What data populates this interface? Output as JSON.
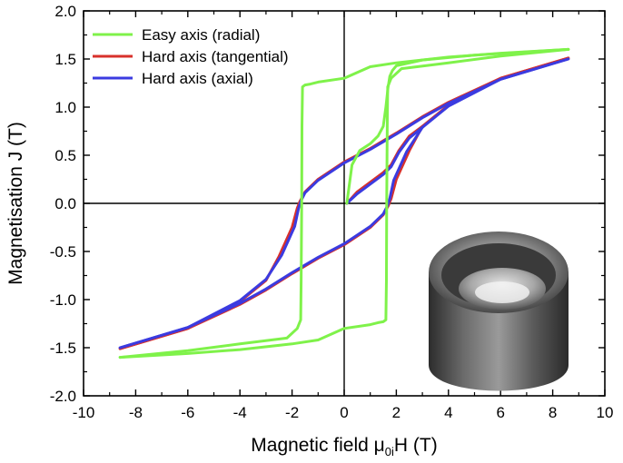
{
  "chart_data": {
    "type": "line",
    "xlabel_prefix": "Magnetic field ",
    "xlabel_mu": "μ",
    "xlabel_sub": "0i",
    "xlabel_suffix": "H (T)",
    "ylabel": "Magnetisation J (T)",
    "xlim": [
      -10,
      10
    ],
    "ylim": [
      -2.0,
      2.0
    ],
    "xticks": [
      -10,
      -8,
      -6,
      -4,
      -2,
      0,
      2,
      4,
      6,
      8,
      10
    ],
    "xtick_labels": [
      "-10",
      "-8",
      "-6",
      "-4",
      "-2",
      "0",
      "2",
      "4",
      "6",
      "8",
      "10"
    ],
    "yticks": [
      -2.0,
      -1.5,
      -1.0,
      -0.5,
      0.0,
      0.5,
      1.0,
      1.5,
      2.0
    ],
    "ytick_labels": [
      "-2.0",
      "-1.5",
      "-1.0",
      "-0.5",
      "0.0",
      "0.5",
      "1.0",
      "1.5",
      "2.0"
    ],
    "grid": false,
    "zero_lines": true,
    "legend_position": "top-left",
    "inset_image": "cylindrical ring magnet photo",
    "series": [
      {
        "name": "Easy axis (radial)",
        "color": "#7ff24a",
        "segments": [
          {
            "x": [
              8.6,
              6.0,
              4.0,
              2.0,
              1.0,
              0.0,
              -1.0,
              -1.3,
              -1.5,
              -1.6,
              -1.62,
              -1.63,
              -1.65,
              -1.67,
              -1.8,
              -2.2,
              -4.0,
              -6.0,
              -8.6
            ],
            "y": [
              1.6,
              1.56,
              1.52,
              1.46,
              1.42,
              1.3,
              1.26,
              1.24,
              1.23,
              1.21,
              0.8,
              0.0,
              -0.8,
              -1.21,
              -1.3,
              -1.4,
              -1.46,
              -1.53,
              -1.6
            ]
          },
          {
            "x": [
              -8.6,
              -6.0,
              -4.0,
              -2.0,
              -1.0,
              0.0,
              1.0,
              1.3,
              1.5,
              1.6,
              1.62,
              1.63,
              1.65,
              1.67,
              1.8,
              2.2,
              4.0,
              6.0,
              8.6
            ],
            "y": [
              -1.6,
              -1.56,
              -1.52,
              -1.46,
              -1.42,
              -1.3,
              -1.26,
              -1.24,
              -1.23,
              -1.21,
              -0.8,
              0.0,
              0.8,
              1.21,
              1.3,
              1.4,
              1.46,
              1.53,
              1.6
            ]
          },
          {
            "x": [
              0.1,
              0.3,
              0.6,
              1.0,
              1.3,
              1.5,
              1.6,
              1.68,
              1.75,
              1.85,
              2.0,
              3.0,
              5.0,
              8.6
            ],
            "y": [
              0.0,
              0.4,
              0.55,
              0.62,
              0.7,
              0.8,
              1.0,
              1.2,
              1.32,
              1.38,
              1.43,
              1.49,
              1.54,
              1.6
            ]
          }
        ]
      },
      {
        "name": "Hard axis (tangential)",
        "color": "#d8312b",
        "segments": [
          {
            "x": [
              8.6,
              6.0,
              4.0,
              3.0,
              2.0,
              1.0,
              0.0,
              -1.0,
              -1.5,
              -1.7,
              -1.8,
              -2.0,
              -2.5,
              -3.0,
              -4.0,
              -6.0,
              -8.6
            ],
            "y": [
              1.51,
              1.3,
              1.05,
              0.9,
              0.73,
              0.57,
              0.43,
              0.25,
              0.12,
              0.02,
              -0.05,
              -0.25,
              -0.55,
              -0.8,
              -1.02,
              -1.3,
              -1.51
            ]
          },
          {
            "x": [
              -8.6,
              -6.0,
              -4.0,
              -3.0,
              -2.0,
              -1.0,
              0.0,
              1.0,
              1.5,
              1.7,
              1.8,
              2.0,
              2.5,
              3.0,
              4.0,
              6.0,
              8.6
            ],
            "y": [
              -1.51,
              -1.3,
              -1.05,
              -0.9,
              -0.73,
              -0.57,
              -0.43,
              -0.25,
              -0.12,
              -0.02,
              0.05,
              0.25,
              0.55,
              0.8,
              1.02,
              1.3,
              1.51
            ]
          },
          {
            "x": [
              0.1,
              0.5,
              1.0,
              1.5,
              1.8,
              2.1,
              2.5,
              3.0
            ],
            "y": [
              0.0,
              0.12,
              0.22,
              0.32,
              0.4,
              0.55,
              0.7,
              0.8
            ]
          }
        ]
      },
      {
        "name": "Hard axis (axial)",
        "color": "#3b3be0",
        "segments": [
          {
            "x": [
              8.6,
              6.0,
              4.0,
              3.0,
              2.0,
              1.0,
              0.0,
              -1.0,
              -1.5,
              -1.65,
              -1.75,
              -1.9,
              -2.4,
              -3.0,
              -4.0,
              -6.0,
              -8.6
            ],
            "y": [
              1.5,
              1.29,
              1.04,
              0.89,
              0.72,
              0.56,
              0.42,
              0.24,
              0.11,
              0.03,
              -0.05,
              -0.24,
              -0.54,
              -0.79,
              -1.01,
              -1.29,
              -1.5
            ]
          },
          {
            "x": [
              -8.6,
              -6.0,
              -4.0,
              -3.0,
              -2.0,
              -1.0,
              0.0,
              1.0,
              1.5,
              1.65,
              1.75,
              1.9,
              2.4,
              3.0,
              4.0,
              6.0,
              8.6
            ],
            "y": [
              -1.5,
              -1.29,
              -1.04,
              -0.89,
              -0.72,
              -0.56,
              -0.42,
              -0.24,
              -0.11,
              -0.03,
              0.05,
              0.24,
              0.54,
              0.79,
              1.01,
              1.29,
              1.5
            ]
          },
          {
            "x": [
              0.1,
              0.5,
              1.0,
              1.5,
              1.8,
              2.1,
              2.5,
              3.0
            ],
            "y": [
              0.0,
              0.1,
              0.2,
              0.3,
              0.38,
              0.53,
              0.68,
              0.79
            ]
          }
        ]
      }
    ]
  }
}
